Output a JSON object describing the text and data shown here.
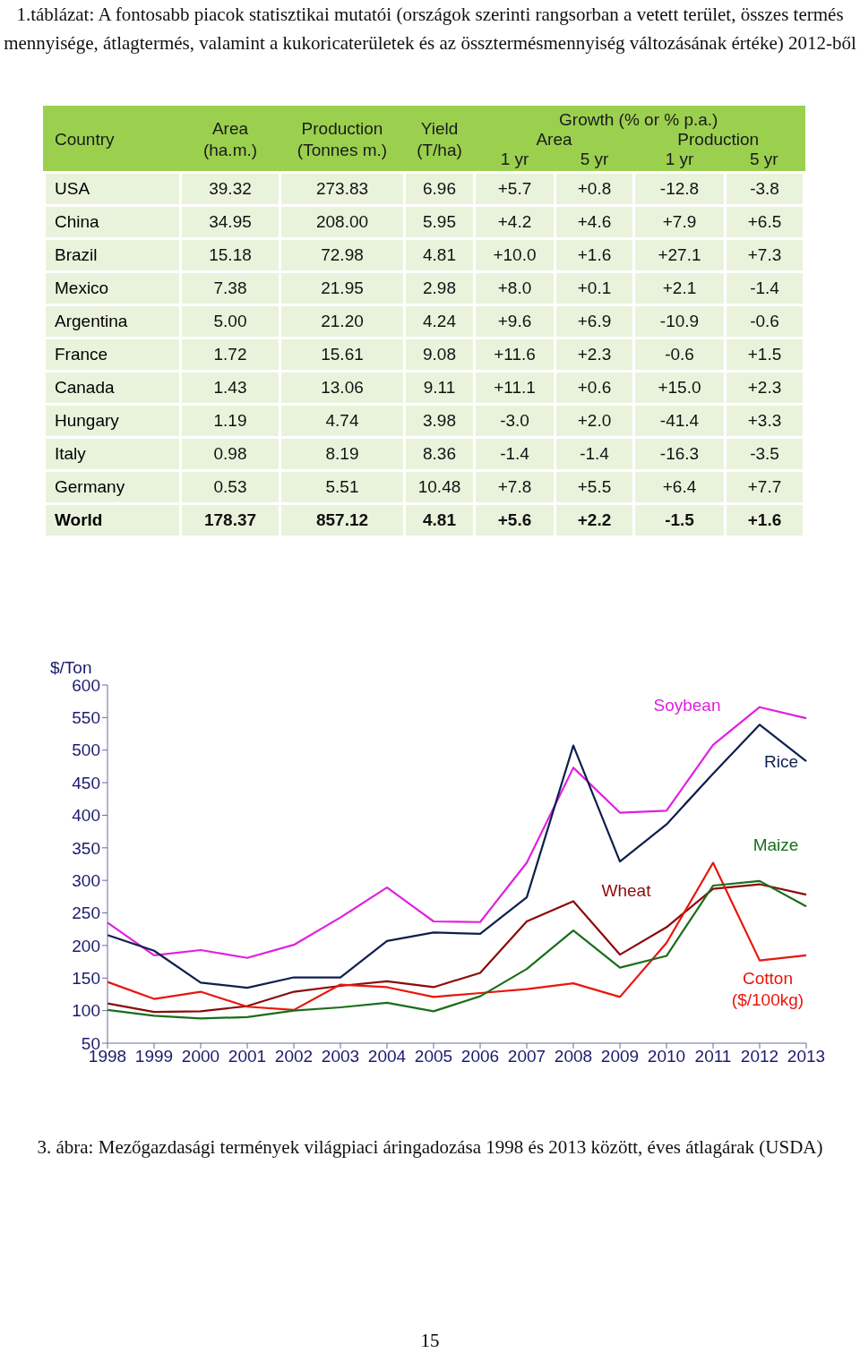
{
  "chart_data": [
    {
      "type": "heatmap",
      "title": "1.táblázat: A fontosabb piacok statisztikai mutatói (országok szerinti rangsorban a vetett terület, összes termés mennyisége, átlagtermés, valamint a kukoricaterületek és az össztermésmennyiség változásának értéke) 2012-ből",
      "ylabel": "Country",
      "annotations": [
        "Growth (% or % p.a.)",
        "Area",
        "Production"
      ],
      "categories": [
        "Area (ha.m.)",
        "Production (Tonnes m.)",
        "Yield (T/ha)",
        "1 yr",
        "5 yr",
        "1 yr",
        "5 yr"
      ],
      "y_categories": [
        "USA",
        "China",
        "Brazil",
        "Mexico",
        "Argentina",
        "France",
        "Canada",
        "Hungary",
        "Italy",
        "Germany",
        "World"
      ],
      "cells": [
        [
          39.32,
          273.83,
          6.96,
          5.7,
          0.8,
          -12.8,
          -3.8
        ],
        [
          34.95,
          208,
          5.95,
          4.2,
          4.6,
          7.9,
          6.5
        ],
        [
          15.18,
          72.98,
          4.81,
          10,
          1.6,
          27.1,
          7.3
        ],
        [
          7.38,
          21.95,
          2.98,
          8,
          0.1,
          2.1,
          -1.4
        ],
        [
          5,
          21.2,
          4.24,
          9.6,
          6.9,
          -10.9,
          -0.6
        ],
        [
          1.72,
          15.61,
          9.08,
          11.6,
          2.3,
          -0.6,
          1.5
        ],
        [
          1.43,
          13.06,
          9.11,
          11.1,
          0.6,
          15,
          2.3
        ],
        [
          1.19,
          4.74,
          3.98,
          -3,
          2,
          -41.4,
          3.3
        ],
        [
          0.98,
          8.19,
          8.36,
          -1.4,
          -1.4,
          -16.3,
          -3.5
        ],
        [
          0.53,
          5.51,
          10.48,
          7.8,
          5.5,
          6.4,
          7.7
        ],
        [
          178.37,
          857.12,
          4.81,
          5.6,
          2.2,
          -1.5,
          1.6
        ]
      ],
      "cell_labels": [
        [
          "39.32",
          "273.83",
          "6.96",
          "+5.7",
          "+0.8",
          "-12.8",
          "-3.8"
        ],
        [
          "34.95",
          "208.00",
          "5.95",
          "+4.2",
          "+4.6",
          "+7.9",
          "+6.5"
        ],
        [
          "15.18",
          "72.98",
          "4.81",
          "+10.0",
          "+1.6",
          "+27.1",
          "+7.3"
        ],
        [
          "7.38",
          "21.95",
          "2.98",
          "+8.0",
          "+0.1",
          "+2.1",
          "-1.4"
        ],
        [
          "5.00",
          "21.20",
          "4.24",
          "+9.6",
          "+6.9",
          "-10.9",
          "-0.6"
        ],
        [
          "1.72",
          "15.61",
          "9.08",
          "+11.6",
          "+2.3",
          "-0.6",
          "+1.5"
        ],
        [
          "1.43",
          "13.06",
          "9.11",
          "+11.1",
          "+0.6",
          "+15.0",
          "+2.3"
        ],
        [
          "1.19",
          "4.74",
          "3.98",
          "-3.0",
          "+2.0",
          "-41.4",
          "+3.3"
        ],
        [
          "0.98",
          "8.19",
          "8.36",
          "-1.4",
          "-1.4",
          "-16.3",
          "-3.5"
        ],
        [
          "0.53",
          "5.51",
          "10.48",
          "+7.8",
          "+5.5",
          "+6.4",
          "+7.7"
        ],
        [
          "178.37",
          "857.12",
          "4.81",
          "+5.6",
          "+2.2",
          "-1.5",
          "+1.6"
        ]
      ]
    },
    {
      "type": "line",
      "ylabel": "$/Ton",
      "legend": false,
      "marker": "none",
      "annotations": [
        "3. ábra: Mezőgazdasági termények világpiaci áringadozása 1998 és 2013 között, éves átlagárak (USDA)",
        "15"
      ],
      "categories": [
        "1998",
        "1999",
        "2000",
        "2001",
        "2002",
        "2003",
        "2004",
        "2005",
        "2006",
        "2007",
        "2008",
        "2009",
        "2010",
        "2011",
        "2012",
        "2013"
      ],
      "ylim": [
        50,
        600
      ],
      "yticks": [
        50,
        100,
        150,
        200,
        250,
        300,
        350,
        400,
        450,
        500,
        550,
        600
      ],
      "series": [
        {
          "name": "Soybean",
          "color": "#e020e0",
          "values": [
            235,
            185,
            193,
            181,
            201,
            243,
            289,
            237,
            236,
            327,
            473,
            404,
            407,
            508,
            566,
            549
          ]
        },
        {
          "name": "Rice",
          "color": "#0e1f4f",
          "values": [
            216,
            192,
            143,
            135,
            151,
            151,
            207,
            220,
            218,
            274,
            507,
            329,
            386,
            464,
            539,
            483
          ]
        },
        {
          "name": "Wheat",
          "color": "#8b0a0a",
          "values": [
            111,
            98,
            99,
            107,
            129,
            138,
            145,
            136,
            158,
            237,
            268,
            186,
            228,
            287,
            294,
            278
          ]
        },
        {
          "name": "Cotton ($/100kg)",
          "color": "#e8160c",
          "values": [
            144,
            118,
            129,
            106,
            101,
            140,
            136,
            121,
            127,
            133,
            142,
            121,
            204,
            327,
            177,
            185
          ]
        },
        {
          "name": "Maize",
          "color": "#1a6e1a",
          "values": [
            101,
            92,
            88,
            90,
            100,
            105,
            112,
            99,
            122,
            164,
            223,
            166,
            184,
            292,
            299,
            260
          ]
        }
      ]
    }
  ]
}
